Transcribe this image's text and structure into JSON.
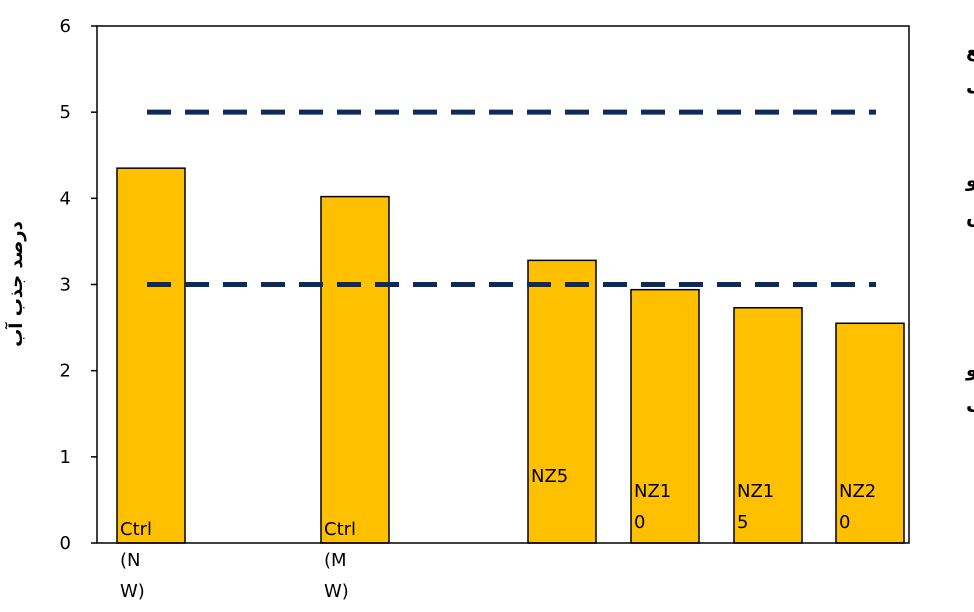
{
  "chart_data": {
    "type": "bar",
    "categories": [
      "Ctrl\n(N\nW)",
      "Ctrl\n(M\nW)",
      "NZ5",
      "NZ1\n0",
      "NZ1\n5",
      "NZ2\n0"
    ],
    "values": [
      4.35,
      4.02,
      3.28,
      2.94,
      2.73,
      2.55
    ],
    "ylabel": "درصد جذب آب",
    "ylim": [
      0,
      6
    ],
    "yticks": [
      0,
      1,
      2,
      3,
      4,
      5,
      6
    ],
    "grid": false,
    "reference_lines": [
      {
        "y": 5,
        "style": "dashed"
      },
      {
        "y": 3,
        "style": "dashed"
      }
    ],
    "zone_labels": [
      {
        "text": "ضع\nف",
        "y": 5.5
      },
      {
        "text": "متو\nس",
        "y": 4.0
      },
      {
        "text": "خو\nب",
        "y": 1.8
      }
    ],
    "bar_color": "#FFC000",
    "bar_edge_color": "#000000",
    "reference_line_color": "#0D2A5C"
  }
}
